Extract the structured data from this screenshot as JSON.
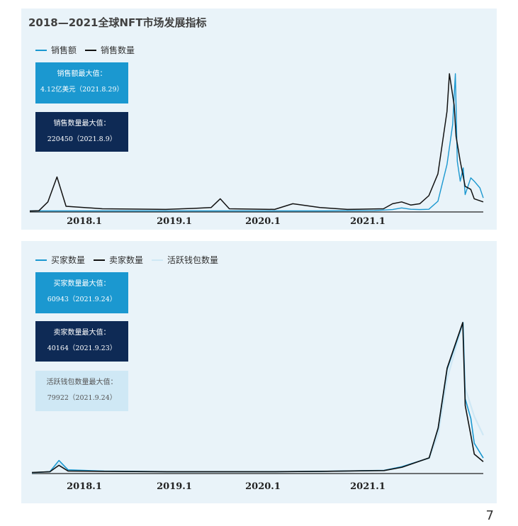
{
  "page_number": "7",
  "colors": {
    "blue": "#1b98d0",
    "black": "#111111",
    "light": "#cfe8f5",
    "navy": "#0e2a55",
    "panel_bg": "#e9f3f9"
  },
  "panel1": {
    "title": "2018—2021全球NFT市场发展指标",
    "legend": [
      "销售额",
      "销售数量"
    ],
    "box1": {
      "label": "销售额最大值：",
      "value": "4.12亿美元（2021.8.29）"
    },
    "box2": {
      "label": "销售数量最大值：",
      "value": "220450（2021.8.9）"
    }
  },
  "panel2": {
    "legend": [
      "买家数量",
      "卖家数量",
      "活跃钱包数量"
    ],
    "box1": {
      "label": "买家数量最大值：",
      "value": "60943（2021.9.24）"
    },
    "box2": {
      "label": "卖家数量最大值：",
      "value": "40164（2021.9.23）"
    },
    "box3": {
      "label": "活跃钱包数量最大值：",
      "value": "79922（2021.9.24）"
    }
  },
  "chart_data": [
    {
      "type": "line",
      "title": "2018—2021全球NFT市场发展指标",
      "x_tick_labels": [
        "2018.1",
        "2019.1",
        "2020.1",
        "2021.1"
      ],
      "x_range": [
        "2017.10",
        "2021.12"
      ],
      "axis_line": "bottom only, no grid",
      "legend_placement": "top-left",
      "series": [
        {
          "name": "销售额",
          "color": "#1b98d0",
          "points": [
            [
              "2017.10",
              0.01
            ],
            [
              "2017.12",
              0.01
            ],
            [
              "2018.2",
              0.01
            ],
            [
              "2018.6",
              0.01
            ],
            [
              "2019.1",
              0.01
            ],
            [
              "2019.6",
              0.01
            ],
            [
              "2020.1",
              0.01
            ],
            [
              "2020.6",
              0.01
            ],
            [
              "2020.12",
              0.02
            ],
            [
              "2021.2",
              0.05
            ],
            [
              "2021.3",
              0.1
            ],
            [
              "2021.4",
              0.06
            ],
            [
              "2021.5",
              0.05
            ],
            [
              "2021.6",
              0.06
            ],
            [
              "2021.7",
              0.3
            ],
            [
              "2021.8",
              1.4
            ],
            [
              "2021.8.20",
              2.6
            ],
            [
              "2021.8.29",
              4.12
            ],
            [
              "2021.9.5",
              1.5
            ],
            [
              "2021.9.15",
              0.9
            ],
            [
              "2021.9.25",
              1.3
            ],
            [
              "2021.10",
              0.5
            ],
            [
              "2021.10.20",
              1.0
            ],
            [
              "2021.11",
              0.9
            ],
            [
              "2021.11.20",
              0.7
            ],
            [
              "2021.12",
              0.4
            ]
          ]
        },
        {
          "name": "销售数量",
          "color": "#111111",
          "points": [
            [
              "2017.10",
              500
            ],
            [
              "2017.11",
              800
            ],
            [
              "2017.12",
              15000
            ],
            [
              "2018.1",
              55000
            ],
            [
              "2018.2",
              8000
            ],
            [
              "2018.6",
              4000
            ],
            [
              "2019.1",
              3000
            ],
            [
              "2019.4",
              4500
            ],
            [
              "2019.6",
              6000
            ],
            [
              "2019.7",
              20000
            ],
            [
              "2019.8",
              4000
            ],
            [
              "2020.1",
              3000
            ],
            [
              "2020.3",
              12000
            ],
            [
              "2020.6",
              6000
            ],
            [
              "2020.9",
              3000
            ],
            [
              "2021.1",
              4000
            ],
            [
              "2021.2",
              12000
            ],
            [
              "2021.3",
              15000
            ],
            [
              "2021.4",
              10000
            ],
            [
              "2021.5",
              12000
            ],
            [
              "2021.6",
              25000
            ],
            [
              "2021.7",
              60000
            ],
            [
              "2021.8",
              160000
            ],
            [
              "2021.8.9",
              220450
            ],
            [
              "2021.8.25",
              170000
            ],
            [
              "2021.9",
              120000
            ],
            [
              "2021.9.15",
              80000
            ],
            [
              "2021.10",
              40000
            ],
            [
              "2021.10.20",
              35000
            ],
            [
              "2021.11",
              20000
            ],
            [
              "2021.12",
              15000
            ]
          ]
        }
      ]
    },
    {
      "type": "line",
      "x_tick_labels": [
        "2018.1",
        "2019.1",
        "2020.1",
        "2021.1"
      ],
      "x_range": [
        "2017.10",
        "2021.12"
      ],
      "axis_line": "bottom only, no grid",
      "legend_placement": "top-left",
      "series": [
        {
          "name": "活跃钱包数量",
          "color": "#cfe8f5",
          "points": [
            [
              "2017.10",
              100
            ],
            [
              "2017.12",
              500
            ],
            [
              "2018.1",
              5000
            ],
            [
              "2018.2",
              1500
            ],
            [
              "2018.6",
              800
            ],
            [
              "2019.1",
              500
            ],
            [
              "2020.1",
              600
            ],
            [
              "2020.6",
              800
            ],
            [
              "2021.1",
              1200
            ],
            [
              "2021.3",
              3000
            ],
            [
              "2021.6",
              8000
            ],
            [
              "2021.7",
              20000
            ],
            [
              "2021.8",
              50000
            ],
            [
              "2021.9.24",
              79922
            ],
            [
              "2021.10",
              45000
            ],
            [
              "2021.11",
              30000
            ],
            [
              "2021.12",
              20000
            ]
          ]
        },
        {
          "name": "买家数量",
          "color": "#1b98d0",
          "points": [
            [
              "2017.10",
              100
            ],
            [
              "2017.12",
              500
            ],
            [
              "2018.1",
              5000
            ],
            [
              "2018.2",
              1200
            ],
            [
              "2018.6",
              700
            ],
            [
              "2019.1",
              500
            ],
            [
              "2020.1",
              500
            ],
            [
              "2020.6",
              600
            ],
            [
              "2021.1",
              1000
            ],
            [
              "2021.3",
              2500
            ],
            [
              "2021.6",
              6000
            ],
            [
              "2021.7",
              18000
            ],
            [
              "2021.8",
              42000
            ],
            [
              "2021.9.24",
              60943
            ],
            [
              "2021.10",
              30000
            ],
            [
              "2021.10.20",
              22000
            ],
            [
              "2021.11",
              12000
            ],
            [
              "2021.12",
              6000
            ]
          ]
        },
        {
          "name": "卖家数量",
          "color": "#111111",
          "points": [
            [
              "2017.10",
              100
            ],
            [
              "2017.12",
              300
            ],
            [
              "2018.1",
              2000
            ],
            [
              "2018.2",
              500
            ],
            [
              "2018.6",
              400
            ],
            [
              "2019.1",
              300
            ],
            [
              "2020.1",
              300
            ],
            [
              "2020.6",
              400
            ],
            [
              "2021.1",
              600
            ],
            [
              "2021.3",
              1500
            ],
            [
              "2021.6",
              4000
            ],
            [
              "2021.7",
              12000
            ],
            [
              "2021.8",
              28000
            ],
            [
              "2021.9.23",
              40164
            ],
            [
              "2021.10",
              18000
            ],
            [
              "2021.10.20",
              10000
            ],
            [
              "2021.11",
              5000
            ],
            [
              "2021.12",
              3000
            ]
          ]
        }
      ]
    }
  ]
}
